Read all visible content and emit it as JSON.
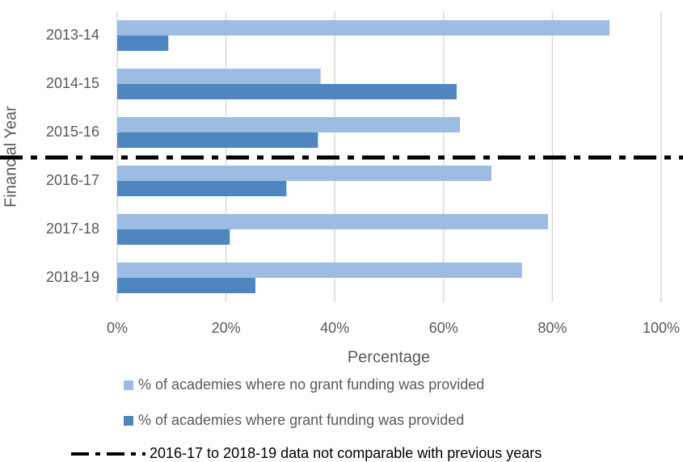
{
  "chart_data": {
    "type": "barh",
    "categories": [
      "2013-14",
      "2014-15",
      "2015-16",
      "2016-17",
      "2017-18",
      "2018-19"
    ],
    "series": [
      {
        "name": "% of academies where no grant funding was provided",
        "color": "#9dbce3",
        "values": [
          90.5,
          37.4,
          63,
          68.8,
          79.2,
          74.4
        ]
      },
      {
        "name": "% of academies where grant funding was provided",
        "color": "#4f86c0",
        "values": [
          9.4,
          62.4,
          36.9,
          31.1,
          20.7,
          25.4
        ]
      }
    ],
    "xlabel": "Percentage",
    "ylabel": "Financial Year",
    "xlim": [
      0,
      100
    ],
    "xticks": [
      {
        "value": 0,
        "label": "0%"
      },
      {
        "value": 20,
        "label": "20%"
      },
      {
        "value": 40,
        "label": "40%"
      },
      {
        "value": 60,
        "label": "60%"
      },
      {
        "value": 80,
        "label": "80%"
      },
      {
        "value": 100,
        "label": "100%"
      }
    ],
    "grid": true,
    "legend": "bottom",
    "divider": {
      "after": "2015-16",
      "label": "2016-17 to 2018-19 data not comparable with previous years"
    }
  }
}
